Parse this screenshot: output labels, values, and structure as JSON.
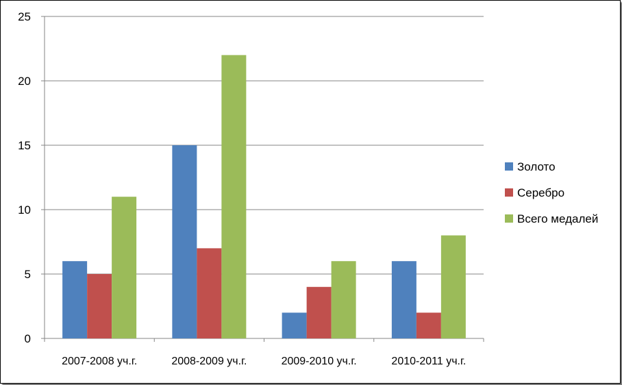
{
  "chart_data": {
    "type": "bar",
    "title": "",
    "xlabel": "",
    "ylabel": "",
    "categories": [
      "2007-2008 уч.г.",
      "2008-2009 уч.г.",
      "2009-2010 уч.г.",
      "2010-2011 уч.г."
    ],
    "series": [
      {
        "name": "Золото",
        "color": "#4F81BD",
        "values": [
          6,
          15,
          2,
          6
        ]
      },
      {
        "name": "Серебро",
        "color": "#C0504D",
        "values": [
          5,
          7,
          4,
          2
        ]
      },
      {
        "name": "Всего медалей",
        "color": "#9BBB59",
        "values": [
          11,
          22,
          6,
          8
        ]
      }
    ],
    "ylim": [
      0,
      25
    ],
    "yticks": [
      0,
      5,
      10,
      15,
      20,
      25
    ],
    "grid": true,
    "legend": "right"
  }
}
